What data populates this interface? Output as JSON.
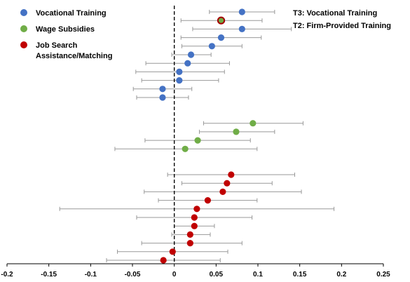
{
  "chart_data": {
    "type": "scatter",
    "subtype": "coefficient-plot-with-confidence-intervals",
    "xlim": [
      -0.2,
      0.25
    ],
    "x_ticks": [
      -0.2,
      -0.15,
      -0.1,
      -0.05,
      0,
      0.05,
      0.1,
      0.15,
      0.2,
      0.25
    ],
    "x_tick_labels": [
      "-0.2",
      "-0.15",
      "-0.1",
      "-0.05",
      "0",
      "0.05",
      "0.1",
      "0.15",
      "0.2",
      "0.25"
    ],
    "zero_line": "dashed",
    "grid": false,
    "legend_position": "top-left",
    "colors": {
      "vocational": "#4472C4",
      "wage": "#70AD47",
      "job_search": "#C00000",
      "ci": "#999999",
      "highlight_outline": "#A50000"
    },
    "series": [
      {
        "name": "Vocational Training",
        "color_key": "vocational",
        "points": [
          {
            "estimate": 0.081,
            "ci_low": 0.042,
            "ci_high": 0.12
          },
          {
            "estimate": 0.057,
            "ci_low": 0.008,
            "ci_high": 0.105
          },
          {
            "estimate": 0.081,
            "ci_low": 0.022,
            "ci_high": 0.14
          },
          {
            "estimate": 0.056,
            "ci_low": 0.008,
            "ci_high": 0.104
          },
          {
            "estimate": 0.045,
            "ci_low": 0.009,
            "ci_high": 0.081
          },
          {
            "estimate": 0.02,
            "ci_low": -0.003,
            "ci_high": 0.044
          },
          {
            "estimate": 0.016,
            "ci_low": -0.034,
            "ci_high": 0.066
          },
          {
            "estimate": 0.006,
            "ci_low": -0.046,
            "ci_high": 0.06
          },
          {
            "estimate": 0.006,
            "ci_low": -0.039,
            "ci_high": 0.053
          },
          {
            "estimate": -0.014,
            "ci_low": -0.049,
            "ci_high": 0.021
          },
          {
            "estimate": -0.014,
            "ci_low": -0.045,
            "ci_high": 0.017
          }
        ]
      },
      {
        "name": "Wage Subsidies",
        "color_key": "wage",
        "points": [
          {
            "estimate": 0.094,
            "ci_low": 0.035,
            "ci_high": 0.154
          },
          {
            "estimate": 0.074,
            "ci_low": 0.03,
            "ci_high": 0.12
          },
          {
            "estimate": 0.028,
            "ci_low": -0.035,
            "ci_high": 0.091
          },
          {
            "estimate": 0.013,
            "ci_low": -0.071,
            "ci_high": 0.099
          }
        ]
      },
      {
        "name": "Job Search Assistance/Matching",
        "legend_lines": [
          "Job Search",
          "Assistance/Matching"
        ],
        "color_key": "job_search",
        "points": [
          {
            "estimate": 0.068,
            "ci_low": -0.008,
            "ci_high": 0.144
          },
          {
            "estimate": 0.063,
            "ci_low": 0.009,
            "ci_high": 0.117
          },
          {
            "estimate": 0.058,
            "ci_low": -0.036,
            "ci_high": 0.152
          },
          {
            "estimate": 0.04,
            "ci_low": -0.019,
            "ci_high": 0.099
          },
          {
            "estimate": 0.027,
            "ci_low": -0.137,
            "ci_high": 0.191
          },
          {
            "estimate": 0.024,
            "ci_low": -0.045,
            "ci_high": 0.093
          },
          {
            "estimate": 0.024,
            "ci_low": 0.0,
            "ci_high": 0.048
          },
          {
            "estimate": 0.019,
            "ci_low": -0.003,
            "ci_high": 0.043
          },
          {
            "estimate": 0.019,
            "ci_low": -0.039,
            "ci_high": 0.081
          },
          {
            "estimate": -0.002,
            "ci_low": -0.068,
            "ci_high": 0.064
          },
          {
            "estimate": -0.013,
            "ci_low": -0.081,
            "ci_high": 0.055
          }
        ]
      }
    ],
    "highlighted_point": {
      "label": "T2: Firm-Provided Training",
      "estimate": 0.056,
      "ci_low": 0.008,
      "ci_high": 0.105
    },
    "annotations": [
      {
        "text": "T3: Vocational Training",
        "refers_to": "first Vocational Training point"
      },
      {
        "text": "T2: Firm-Provided Training",
        "refers_to": "highlighted point"
      }
    ]
  }
}
